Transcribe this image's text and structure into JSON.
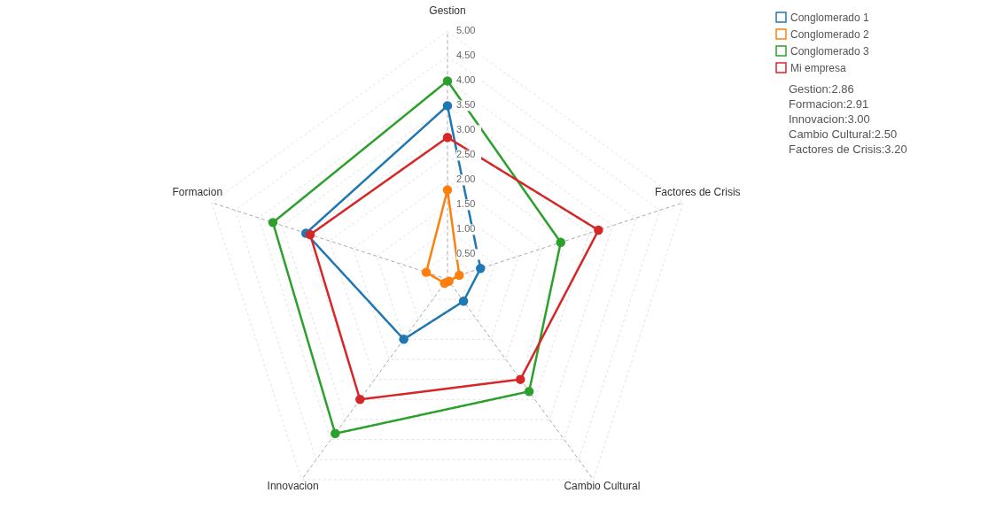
{
  "chart_data": {
    "type": "radar",
    "categories": [
      "Gestion",
      "Factores de Crisis",
      "Cambio Cultural",
      "Innovacion",
      "Formacion"
    ],
    "series": [
      {
        "name": "Conglomerado 1",
        "color": "#1f77b4",
        "values": [
          3.5,
          0.7,
          0.55,
          1.5,
          3.0
        ]
      },
      {
        "name": "Conglomerado 2",
        "color": "#ff7f0e",
        "values": [
          1.8,
          0.25,
          0.05,
          0.1,
          0.45
        ]
      },
      {
        "name": "Conglomerado 3",
        "color": "#2ca02c",
        "values": [
          4.0,
          2.4,
          2.8,
          3.85,
          3.7
        ]
      },
      {
        "name": "Mi empresa",
        "color": "#d62728",
        "values": [
          2.86,
          3.2,
          2.5,
          3.0,
          2.91
        ]
      }
    ],
    "ylim": [
      0,
      5
    ],
    "yticks": [
      {
        "value": 0.5,
        "label": "0.50"
      },
      {
        "value": 1.0,
        "label": "1.00"
      },
      {
        "value": 1.5,
        "label": "1.50"
      },
      {
        "value": 2.0,
        "label": "2.00"
      },
      {
        "value": 2.5,
        "label": "2.50"
      },
      {
        "value": 3.0,
        "label": "3.00"
      },
      {
        "value": 3.5,
        "label": "3.50"
      },
      {
        "value": 4.0,
        "label": "4.00"
      },
      {
        "value": 4.5,
        "label": "4.50"
      },
      {
        "value": 5.0,
        "label": "5.00"
      }
    ],
    "annotations": [
      "Gestion:2.86",
      "Formacion:2.91",
      "Innovacion:3.00",
      "Cambio Cultural:2.50",
      "Factores de Crisis:3.20"
    ],
    "grid": true,
    "legend": "top right",
    "marker": "circle",
    "line_style": "solid"
  }
}
